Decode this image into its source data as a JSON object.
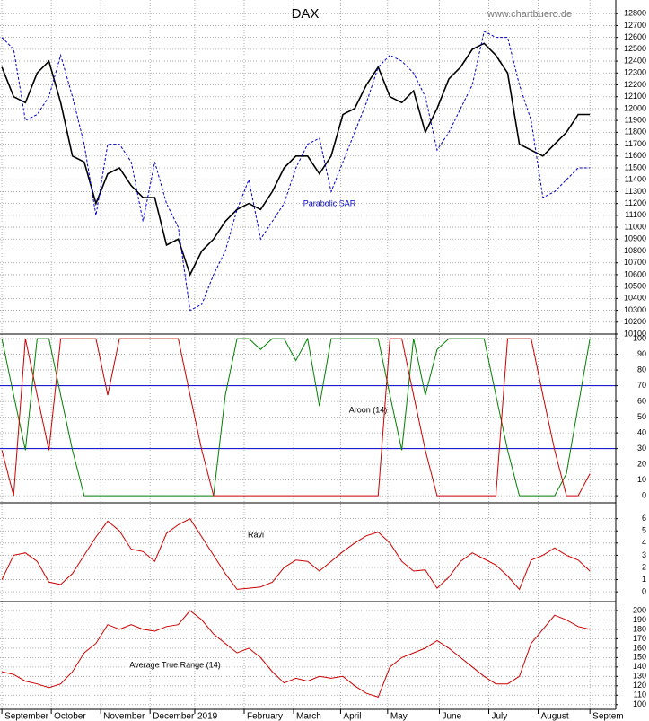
{
  "chart_data": [
    {
      "type": "line",
      "title": "DAX",
      "source": "www.chartbuero.de",
      "x": [
        0,
        5,
        10,
        15,
        20,
        25,
        30,
        35,
        40,
        45,
        50,
        55,
        60,
        65,
        70,
        75,
        80,
        85,
        90,
        95,
        100,
        105,
        110,
        115,
        120,
        125,
        130,
        135,
        140,
        145,
        150,
        155,
        160,
        165,
        170,
        175,
        180,
        185,
        190,
        195,
        200,
        205,
        210,
        215,
        220,
        225,
        230,
        235,
        240,
        245,
        250
      ],
      "xlim": [
        -0.8,
        261
      ],
      "ylim": [
        10100,
        12900
      ],
      "yticks": [
        10100,
        10200,
        10300,
        10400,
        10500,
        10600,
        10700,
        10800,
        10900,
        11000,
        11100,
        11200,
        11300,
        11400,
        11500,
        11600,
        11700,
        11800,
        11900,
        12000,
        12100,
        12200,
        12300,
        12400,
        12500,
        12600,
        12700,
        12800
      ],
      "grid": true,
      "series": [
        {
          "color": "#000000",
          "values": [
            12350,
            12100,
            12050,
            12300,
            12400,
            12050,
            11600,
            11550,
            11200,
            11450,
            11500,
            11350,
            11250,
            11250,
            10850,
            10900,
            10600,
            10800,
            10900,
            11050,
            11150,
            11200,
            11150,
            11300,
            11500,
            11600,
            11600,
            11450,
            11600,
            11950,
            12000,
            12200,
            12350,
            12100,
            12050,
            12150,
            11800,
            12000,
            12250,
            12350,
            12500,
            12550,
            12450,
            12300,
            11700,
            11650,
            11600,
            11700,
            11800,
            11950,
            11950
          ]
        },
        {
          "name": "Parabolic SAR",
          "color": "#0000cc",
          "dashed": true,
          "values": [
            12600,
            12500,
            11900,
            11950,
            12100,
            12450,
            12100,
            11700,
            11100,
            11700,
            11700,
            11550,
            11050,
            11550,
            11200,
            11000,
            10300,
            10350,
            10600,
            10800,
            11150,
            11400,
            10900,
            11050,
            11200,
            11500,
            11700,
            11750,
            11300,
            11550,
            11800,
            12050,
            12350,
            12450,
            12400,
            12300,
            12100,
            11650,
            11800,
            12000,
            12200,
            12650,
            12600,
            12600,
            12200,
            11900,
            11250,
            11300,
            11400,
            11500,
            11500
          ]
        }
      ]
    },
    {
      "type": "line",
      "title": "Aroon (14)",
      "x": [
        0,
        5,
        10,
        15,
        20,
        25,
        30,
        35,
        40,
        45,
        50,
        55,
        60,
        65,
        70,
        75,
        80,
        85,
        90,
        95,
        100,
        105,
        110,
        115,
        120,
        125,
        130,
        135,
        140,
        145,
        150,
        155,
        160,
        165,
        170,
        175,
        180,
        185,
        190,
        195,
        200,
        205,
        210,
        215,
        220,
        225,
        230,
        235,
        240,
        245,
        250
      ],
      "xlim": [
        -0.8,
        261
      ],
      "ylim": [
        -4.5,
        102.9
      ],
      "yticks": [
        0,
        10,
        20,
        30,
        40,
        50,
        60,
        70,
        80,
        90,
        100
      ],
      "hlines": [
        30,
        70
      ],
      "hline_color": "#0000cc",
      "grid": true,
      "series": [
        {
          "color": "#008000",
          "values": [
            100,
            64,
            29,
            100,
            100,
            64,
            29,
            0,
            0,
            0,
            0,
            0,
            0,
            0,
            0,
            0,
            0,
            0,
            0,
            64,
            100,
            100,
            93,
            100,
            100,
            86,
            100,
            57,
            100,
            100,
            100,
            100,
            100,
            64,
            29,
            100,
            64,
            93,
            100,
            100,
            100,
            100,
            64,
            29,
            0,
            0,
            0,
            0,
            14,
            57,
            100
          ]
        },
        {
          "color": "#cc0000",
          "values": [
            29,
            0,
            100,
            64,
            29,
            100,
            100,
            100,
            100,
            64,
            100,
            100,
            100,
            100,
            100,
            100,
            64,
            29,
            0,
            0,
            0,
            0,
            0,
            0,
            0,
            0,
            0,
            0,
            0,
            0,
            0,
            0,
            0,
            100,
            100,
            64,
            29,
            0,
            0,
            0,
            0,
            0,
            0,
            100,
            100,
            100,
            64,
            29,
            0,
            0,
            14
          ]
        }
      ]
    },
    {
      "type": "line",
      "title": "Ravi",
      "x": [
        0,
        5,
        10,
        15,
        20,
        25,
        30,
        35,
        40,
        45,
        50,
        55,
        60,
        65,
        70,
        75,
        80,
        85,
        90,
        95,
        100,
        105,
        110,
        115,
        120,
        125,
        130,
        135,
        140,
        145,
        150,
        155,
        160,
        165,
        170,
        175,
        180,
        185,
        190,
        195,
        200,
        205,
        210,
        215,
        220,
        225,
        230,
        235,
        240,
        245,
        250
      ],
      "xlim": [
        -0.8,
        261
      ],
      "ylim": [
        -0.8,
        7.3
      ],
      "yticks": [
        0,
        1,
        2,
        3,
        4,
        5,
        6
      ],
      "grid": true,
      "series": [
        {
          "color": "#cc0000",
          "values": [
            1.0,
            3.0,
            3.2,
            2.5,
            0.8,
            0.6,
            1.5,
            3.0,
            4.5,
            5.8,
            5.0,
            3.5,
            3.3,
            2.5,
            4.8,
            5.5,
            6.0,
            4.5,
            3.0,
            1.5,
            0.2,
            0.3,
            0.4,
            0.8,
            2.0,
            2.6,
            2.5,
            1.7,
            2.5,
            3.3,
            4.0,
            4.6,
            4.9,
            4.0,
            2.5,
            1.7,
            1.8,
            0.3,
            1.2,
            2.5,
            3.2,
            2.7,
            2.2,
            1.3,
            0.2,
            2.6,
            3.0,
            3.6,
            3.0,
            2.6,
            1.7
          ]
        }
      ]
    },
    {
      "type": "line",
      "title": "Average True Range (14)",
      "x": [
        0,
        5,
        10,
        15,
        20,
        25,
        30,
        35,
        40,
        45,
        50,
        55,
        60,
        65,
        70,
        75,
        80,
        85,
        90,
        95,
        100,
        105,
        110,
        115,
        120,
        125,
        130,
        135,
        140,
        145,
        150,
        155,
        160,
        165,
        170,
        175,
        180,
        185,
        190,
        195,
        200,
        205,
        210,
        215,
        220,
        225,
        230,
        235,
        240,
        245,
        250
      ],
      "xlim": [
        -0.8,
        261
      ],
      "ylim": [
        95,
        209.5
      ],
      "yticks": [
        100,
        110,
        120,
        130,
        140,
        150,
        160,
        170,
        180,
        190,
        200
      ],
      "xticks": [
        {
          "value": 0,
          "label": "September"
        },
        {
          "value": 21,
          "label": "October"
        },
        {
          "value": 42,
          "label": "November"
        },
        {
          "value": 63,
          "label": "December"
        },
        {
          "value": 82,
          "label": "2019"
        },
        {
          "value": 103,
          "label": "February"
        },
        {
          "value": 124,
          "label": "March"
        },
        {
          "value": 144,
          "label": "April"
        },
        {
          "value": 164,
          "label": "May"
        },
        {
          "value": 186,
          "label": "June"
        },
        {
          "value": 207,
          "label": "July"
        },
        {
          "value": 228,
          "label": "August"
        },
        {
          "value": 250,
          "label": "Septem"
        }
      ],
      "grid": true,
      "series": [
        {
          "color": "#cc0000",
          "values": [
            135,
            132,
            125,
            122,
            118,
            122,
            135,
            155,
            165,
            185,
            180,
            185,
            180,
            178,
            183,
            185,
            200,
            190,
            175,
            165,
            155,
            160,
            150,
            135,
            123,
            128,
            125,
            130,
            128,
            130,
            120,
            112,
            108,
            140,
            150,
            155,
            160,
            168,
            160,
            150,
            140,
            130,
            122,
            122,
            130,
            165,
            180,
            195,
            190,
            183,
            180
          ]
        }
      ]
    }
  ]
}
